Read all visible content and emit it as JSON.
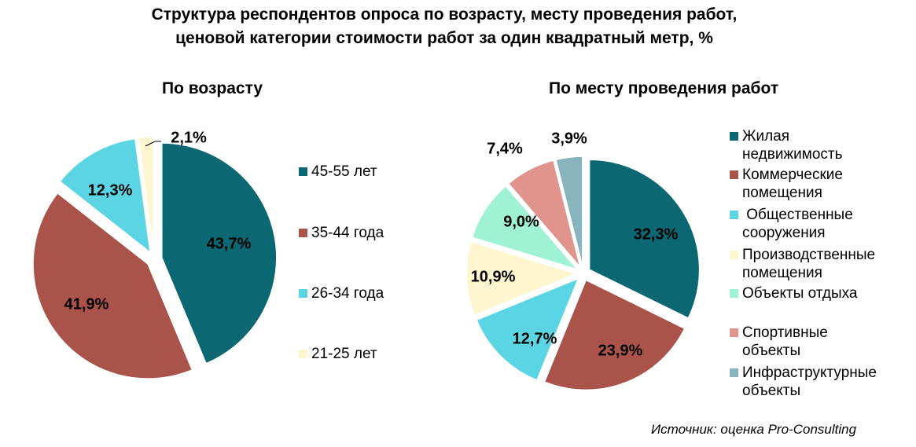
{
  "title": {
    "line1": "Структура респондентов опроса по возрасту, месту проведения работ,",
    "line2": "ценовой категории стоимости работ за один квадратный метр, %"
  },
  "source": "Источник: оценка Pro-Consulting",
  "chart_data": [
    {
      "type": "pie",
      "title": "По возрасту",
      "categories": [
        "45-55 лет",
        "35-44 года",
        "26-34 года",
        "21-25 лет"
      ],
      "values": [
        43.7,
        41.9,
        12.3,
        2.1
      ],
      "labels": [
        "43,7%",
        "41,9%",
        "12,3%",
        "2,1%"
      ],
      "colors": [
        "#0b6872",
        "#a9534b",
        "#5bd5e3",
        "#fdf6cf"
      ],
      "exploded": true,
      "legend": "right"
    },
    {
      "type": "pie",
      "title": "По месту проведения работ",
      "categories": [
        "Жилая недвижимость",
        "Коммерческие помещения",
        " Общественные сооружения",
        "Производственные помещения",
        "Объекты отдыха",
        "Спортивные объекты",
        "Инфраструктурные объекты"
      ],
      "legend_lines": [
        [
          "Жилая",
          "недвижимость"
        ],
        [
          "Коммерческие",
          "помещения"
        ],
        [
          " Общественные",
          "сооружения"
        ],
        [
          "Производственные",
          "помещения"
        ],
        [
          "Объекты отдыха"
        ],
        [
          "Спортивные",
          "объекты"
        ],
        [
          "Инфраструктурные",
          "объекты"
        ]
      ],
      "values": [
        32.3,
        23.9,
        12.7,
        10.9,
        9.0,
        7.4,
        3.9
      ],
      "labels": [
        "32,3%",
        "23,9%",
        "12,7%",
        "10,9%",
        "9,0%",
        "7,4%",
        "3,9%"
      ],
      "colors": [
        "#0b6872",
        "#a9534b",
        "#5bd5e3",
        "#fdf6cf",
        "#9ff2d3",
        "#e0948b",
        "#88b4bd"
      ],
      "exploded": true,
      "legend": "right"
    }
  ]
}
